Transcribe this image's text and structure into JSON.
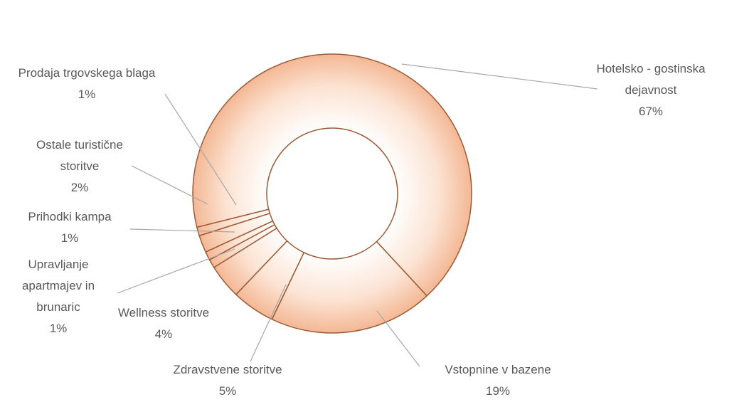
{
  "chart_data": {
    "type": "donut",
    "categories": [
      "Hotelsko - gostinska dejavnost",
      "Vstopnine v bazene",
      "Zdravstvene storitve",
      "Wellness storitve",
      "Upravljanje apartmajev in brunaric",
      "Prihodki kampa",
      "Ostale turistične storitve",
      "Prodaja trgovskega blaga"
    ],
    "values": [
      67,
      19,
      5,
      4,
      1,
      1,
      2,
      1
    ],
    "value_labels": [
      "67%",
      "19%",
      "5%",
      "4%",
      "1%",
      "1%",
      "2%",
      "1%"
    ],
    "color": "#fbd5bd"
  }
}
